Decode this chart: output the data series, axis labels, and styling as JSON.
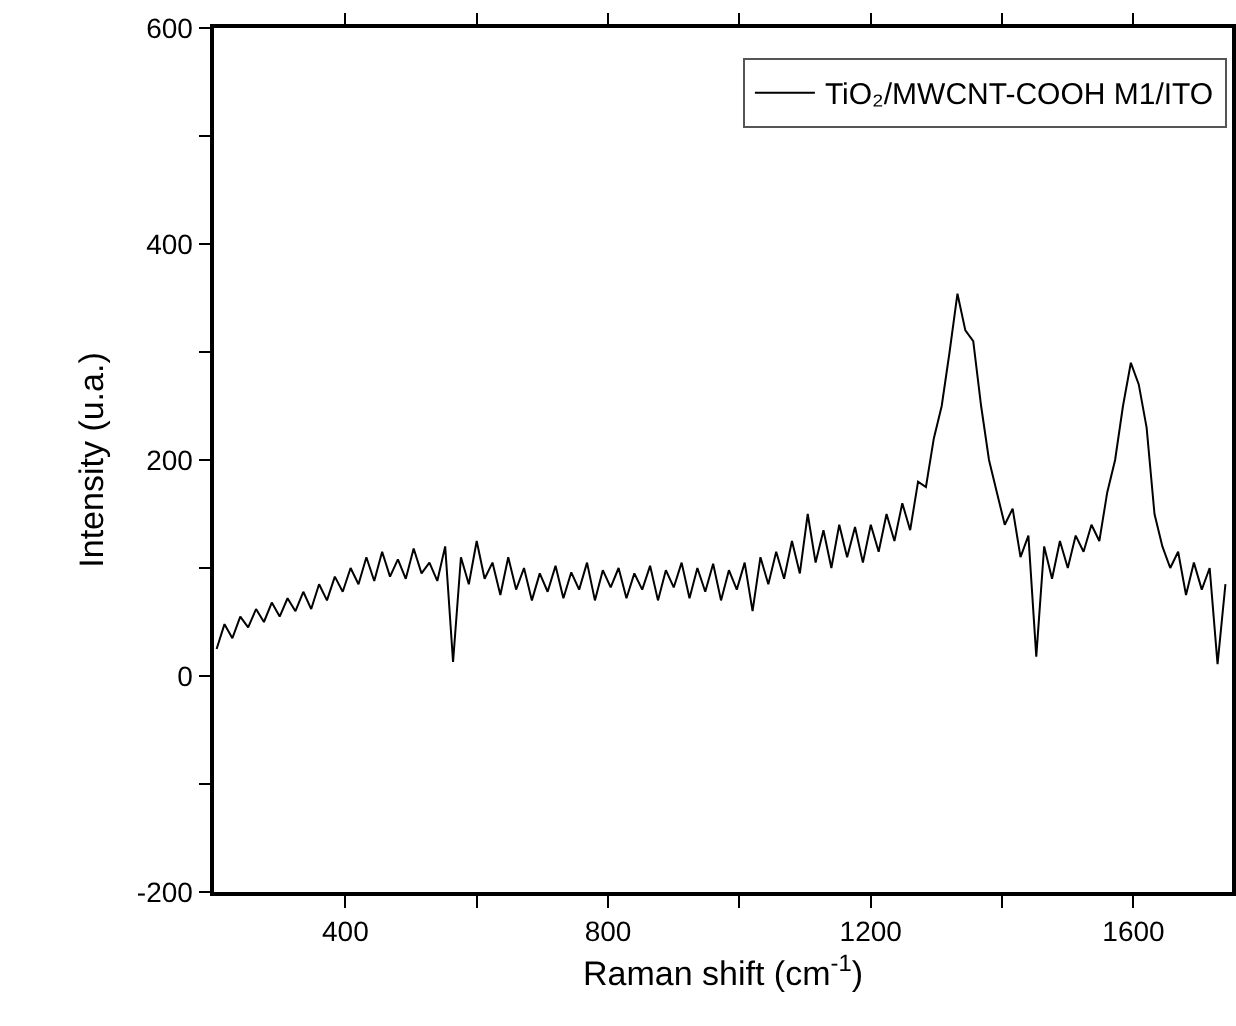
{
  "chart_data": {
    "type": "line",
    "xlabel": "Raman shift (cm$^{-1}$)",
    "ylabel": "Intensity (u.a.)",
    "xlim": [
      200,
      1750
    ],
    "ylim": [
      -200,
      600
    ],
    "xticks": [
      400,
      {
        "value": 600,
        "label": null
      },
      800,
      {
        "value": 1000,
        "label": null
      },
      1200,
      {
        "value": 1400,
        "label": null
      },
      1600
    ],
    "yticks": [
      -200,
      {
        "value": -100,
        "label": null
      },
      0,
      {
        "value": 100,
        "label": null
      },
      200,
      {
        "value": 300,
        "label": null
      },
      400,
      {
        "value": 500,
        "label": null
      },
      600
    ],
    "grid": false,
    "legend": "top right",
    "marker": "none",
    "line_style": "solid",
    "x": [
      204,
      216,
      228,
      240,
      252,
      264,
      276,
      288,
      300,
      312,
      324,
      336,
      348,
      360,
      372,
      384,
      396,
      408,
      420,
      432,
      444,
      456,
      468,
      480,
      492,
      504,
      516,
      528,
      540,
      552,
      564,
      576,
      588,
      600,
      612,
      624,
      636,
      648,
      660,
      672,
      684,
      696,
      708,
      720,
      732,
      744,
      756,
      768,
      780,
      792,
      804,
      816,
      828,
      840,
      852,
      864,
      876,
      888,
      900,
      912,
      924,
      936,
      948,
      960,
      972,
      984,
      996,
      1008,
      1020,
      1032,
      1044,
      1056,
      1068,
      1080,
      1092,
      1104,
      1116,
      1128,
      1140,
      1152,
      1164,
      1176,
      1188,
      1200,
      1212,
      1224,
      1236,
      1248,
      1260,
      1272,
      1284,
      1296,
      1308,
      1320,
      1332,
      1344,
      1356,
      1368,
      1380,
      1392,
      1404,
      1416,
      1428,
      1440,
      1452,
      1464,
      1476,
      1488,
      1500,
      1512,
      1524,
      1536,
      1548,
      1560,
      1572,
      1584,
      1596,
      1608,
      1620,
      1632,
      1644,
      1656,
      1668,
      1680,
      1692,
      1704,
      1716,
      1728,
      1740
    ],
    "series": [
      {
        "name": "TiO₂/MWCNT-COOH M1/ITO",
        "color": "#000000",
        "values": [
          25,
          48,
          35,
          55,
          45,
          62,
          50,
          68,
          55,
          72,
          60,
          78,
          62,
          85,
          70,
          92,
          78,
          100,
          85,
          110,
          88,
          115,
          92,
          108,
          90,
          118,
          95,
          105,
          88,
          120,
          13,
          110,
          85,
          125,
          90,
          105,
          75,
          110,
          80,
          100,
          70,
          95,
          78,
          102,
          72,
          96,
          80,
          105,
          70,
          98,
          82,
          100,
          72,
          95,
          80,
          102,
          70,
          98,
          82,
          105,
          72,
          100,
          78,
          104,
          70,
          98,
          80,
          105,
          60,
          110,
          85,
          115,
          90,
          125,
          95,
          150,
          105,
          135,
          100,
          140,
          110,
          138,
          105,
          140,
          115,
          150,
          125,
          160,
          135,
          180,
          175,
          220,
          250,
          300,
          354,
          320,
          310,
          250,
          200,
          170,
          140,
          155,
          110,
          130,
          18,
          120,
          90,
          125,
          100,
          130,
          115,
          140,
          125,
          170,
          200,
          250,
          290,
          270,
          230,
          150,
          120,
          100,
          115,
          75,
          105,
          80,
          100,
          11,
          85
        ]
      }
    ]
  }
}
